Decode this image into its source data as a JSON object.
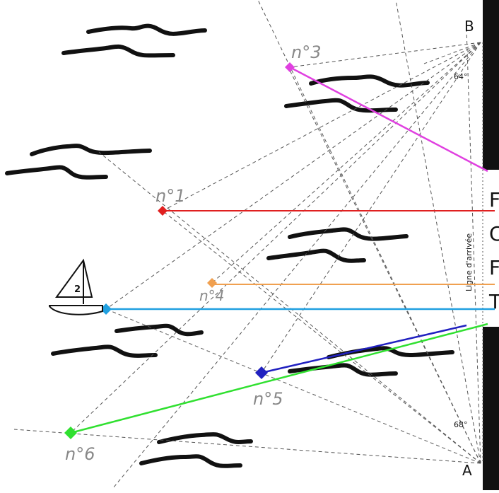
{
  "points": {
    "B": "B",
    "A": "A"
  },
  "angles": {
    "top": "64°",
    "bottom": "68°"
  },
  "finish_line_label": "Ligne d'arrivée",
  "right_panel_letters": [
    "F",
    "C",
    "F",
    "T"
  ],
  "boat_number": "2",
  "buoys": [
    {
      "label": "n°1",
      "color": "#e02020"
    },
    {
      "label": "n°3",
      "color": "#e040e0"
    },
    {
      "label": "n°4",
      "color": "#f0a050"
    },
    {
      "label": "n°5",
      "color": "#2020c0"
    },
    {
      "label": "n°6",
      "color": "#30e030"
    },
    {
      "label": "",
      "color": "#20a0e0"
    }
  ],
  "colors": {
    "dashed": "#555555",
    "waves": "#111111",
    "right_band": "#111111"
  }
}
